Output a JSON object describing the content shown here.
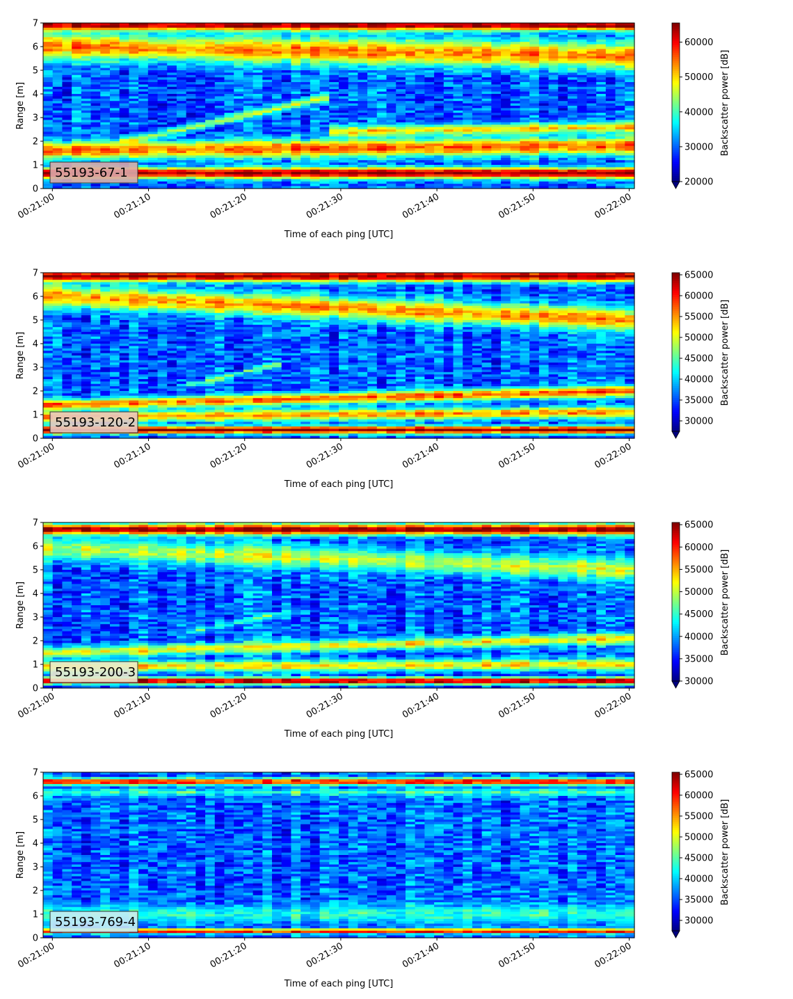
{
  "chart_data": [
    {
      "type": "heatmap",
      "label": "55193-67-1",
      "xlabel": "Time of each ping [UTC]",
      "ylabel": "Range [m]",
      "x_ticks": [
        "00:21:00",
        "00:21:10",
        "00:21:20",
        "00:21:30",
        "00:21:40",
        "00:21:50",
        "00:22:00"
      ],
      "x_range": [
        "00:21:00",
        "00:22:00"
      ],
      "ylim": [
        0,
        7
      ],
      "y_ticks": [
        0,
        1,
        2,
        3,
        4,
        5,
        6,
        7
      ],
      "colorbar_label": "Backscatter power [dB]",
      "colorbar_ticks": [
        20000,
        30000,
        40000,
        50000,
        60000
      ],
      "colorbar_range": [
        20000,
        65500
      ],
      "colormap": "jet",
      "label_box_color": "#d9a9a9",
      "features": [
        {
          "name": "surface",
          "value": 65000,
          "start": [
            0,
            6.9
          ],
          "end": [
            60,
            6.9
          ],
          "width": 0.5
        },
        {
          "name": "upper layer",
          "value": 54000,
          "start": [
            0,
            6.0
          ],
          "end": [
            60,
            5.6
          ],
          "width": 1.2
        },
        {
          "name": "rising trace",
          "value": 46000,
          "start": [
            8,
            2.0
          ],
          "end": [
            28,
            3.8
          ],
          "width": 0.35
        },
        {
          "name": "bright band",
          "value": 56000,
          "start": [
            0,
            1.6
          ],
          "end": [
            60,
            1.8
          ],
          "width": 0.8
        },
        {
          "name": "near band",
          "value": 50000,
          "start": [
            30,
            2.4
          ],
          "end": [
            60,
            2.6
          ],
          "width": 0.5
        },
        {
          "name": "seabed",
          "value": 65000,
          "start": [
            0,
            0.65
          ],
          "end": [
            60,
            0.65
          ],
          "width": 0.5
        }
      ]
    },
    {
      "type": "heatmap",
      "label": "55193-120-2",
      "xlabel": "Time of each ping [UTC]",
      "ylabel": "Range [m]",
      "x_ticks": [
        "00:21:00",
        "00:21:10",
        "00:21:20",
        "00:21:30",
        "00:21:40",
        "00:21:50",
        "00:22:00"
      ],
      "x_range": [
        "00:21:00",
        "00:22:00"
      ],
      "ylim": [
        0,
        7
      ],
      "y_ticks": [
        0,
        1,
        2,
        3,
        4,
        5,
        6,
        7
      ],
      "colorbar_label": "Backscatter power [dB]",
      "colorbar_ticks": [
        30000,
        35000,
        40000,
        45000,
        50000,
        55000,
        60000,
        65000
      ],
      "colorbar_range": [
        27500,
        65500
      ],
      "colormap": "jet",
      "label_box_color": "#e8c8c0",
      "features": [
        {
          "name": "surface",
          "value": 65000,
          "start": [
            0,
            6.85
          ],
          "end": [
            60,
            6.85
          ],
          "width": 0.5
        },
        {
          "name": "upper layer",
          "value": 55000,
          "start": [
            0,
            6.0
          ],
          "end": [
            60,
            5.0
          ],
          "width": 1.0
        },
        {
          "name": "rising trace",
          "value": 46000,
          "start": [
            15,
            2.3
          ],
          "end": [
            23,
            3.1
          ],
          "width": 0.25
        },
        {
          "name": "bright band",
          "value": 57000,
          "start": [
            0,
            1.4
          ],
          "end": [
            60,
            2.0
          ],
          "width": 0.5
        },
        {
          "name": "lower band",
          "value": 55000,
          "start": [
            0,
            0.9
          ],
          "end": [
            60,
            1.1
          ],
          "width": 0.5
        },
        {
          "name": "seabed",
          "value": 65000,
          "start": [
            0,
            0.35
          ],
          "end": [
            60,
            0.35
          ],
          "width": 0.35
        }
      ]
    },
    {
      "type": "heatmap",
      "label": "55193-200-3",
      "xlabel": "Time of each ping [UTC]",
      "ylabel": "Range [m]",
      "x_ticks": [
        "00:21:00",
        "00:21:10",
        "00:21:20",
        "00:21:30",
        "00:21:40",
        "00:21:50",
        "00:22:00"
      ],
      "x_range": [
        "00:21:00",
        "00:22:00"
      ],
      "ylim": [
        0,
        7
      ],
      "y_ticks": [
        0,
        1,
        2,
        3,
        4,
        5,
        6,
        7
      ],
      "colorbar_label": "Backscatter power [dB]",
      "colorbar_ticks": [
        30000,
        35000,
        40000,
        45000,
        50000,
        55000,
        60000,
        65000
      ],
      "colorbar_range": [
        30000,
        65500
      ],
      "colormap": "jet",
      "label_box_color": "#eceacc",
      "features": [
        {
          "name": "surface",
          "value": 65000,
          "start": [
            0,
            6.7
          ],
          "end": [
            60,
            6.7
          ],
          "width": 0.5
        },
        {
          "name": "upper layer",
          "value": 50000,
          "start": [
            0,
            5.9
          ],
          "end": [
            60,
            5.0
          ],
          "width": 1.0
        },
        {
          "name": "rising trace",
          "value": 45000,
          "start": [
            15,
            2.4
          ],
          "end": [
            23,
            3.1
          ],
          "width": 0.25
        },
        {
          "name": "bright band",
          "value": 52000,
          "start": [
            0,
            1.5
          ],
          "end": [
            60,
            2.1
          ],
          "width": 0.5
        },
        {
          "name": "lower band",
          "value": 53000,
          "start": [
            0,
            0.9
          ],
          "end": [
            60,
            1.0
          ],
          "width": 0.5
        },
        {
          "name": "seabed",
          "value": 65000,
          "start": [
            0,
            0.3
          ],
          "end": [
            60,
            0.3
          ],
          "width": 0.3
        }
      ]
    },
    {
      "type": "heatmap",
      "label": "55193-769-4",
      "xlabel": "Time of each ping [UTC]",
      "ylabel": "Range [m]",
      "x_ticks": [
        "00:21:00",
        "00:21:10",
        "00:21:20",
        "00:21:30",
        "00:21:40",
        "00:21:50",
        "00:22:00"
      ],
      "x_range": [
        "00:21:00",
        "00:22:00"
      ],
      "ylim": [
        0,
        7
      ],
      "y_ticks": [
        0,
        1,
        2,
        3,
        4,
        5,
        6,
        7
      ],
      "colorbar_label": "Backscatter power [dB]",
      "colorbar_ticks": [
        30000,
        35000,
        40000,
        45000,
        50000,
        55000,
        60000,
        65000
      ],
      "colorbar_range": [
        27500,
        65500
      ],
      "colormap": "jet",
      "label_box_color": "#c8ecf4",
      "features": [
        {
          "name": "surface",
          "value": 61000,
          "start": [
            0,
            6.6
          ],
          "end": [
            60,
            6.6
          ],
          "width": 0.3
        },
        {
          "name": "near surface",
          "value": 44000,
          "start": [
            0,
            6.15
          ],
          "end": [
            60,
            6.15
          ],
          "width": 0.3
        },
        {
          "name": "lower band",
          "value": 43000,
          "start": [
            0,
            1.0
          ],
          "end": [
            60,
            1.0
          ],
          "width": 0.8
        },
        {
          "name": "seabed",
          "value": 62000,
          "start": [
            0,
            0.28
          ],
          "end": [
            60,
            0.28
          ],
          "width": 0.2
        }
      ]
    }
  ]
}
